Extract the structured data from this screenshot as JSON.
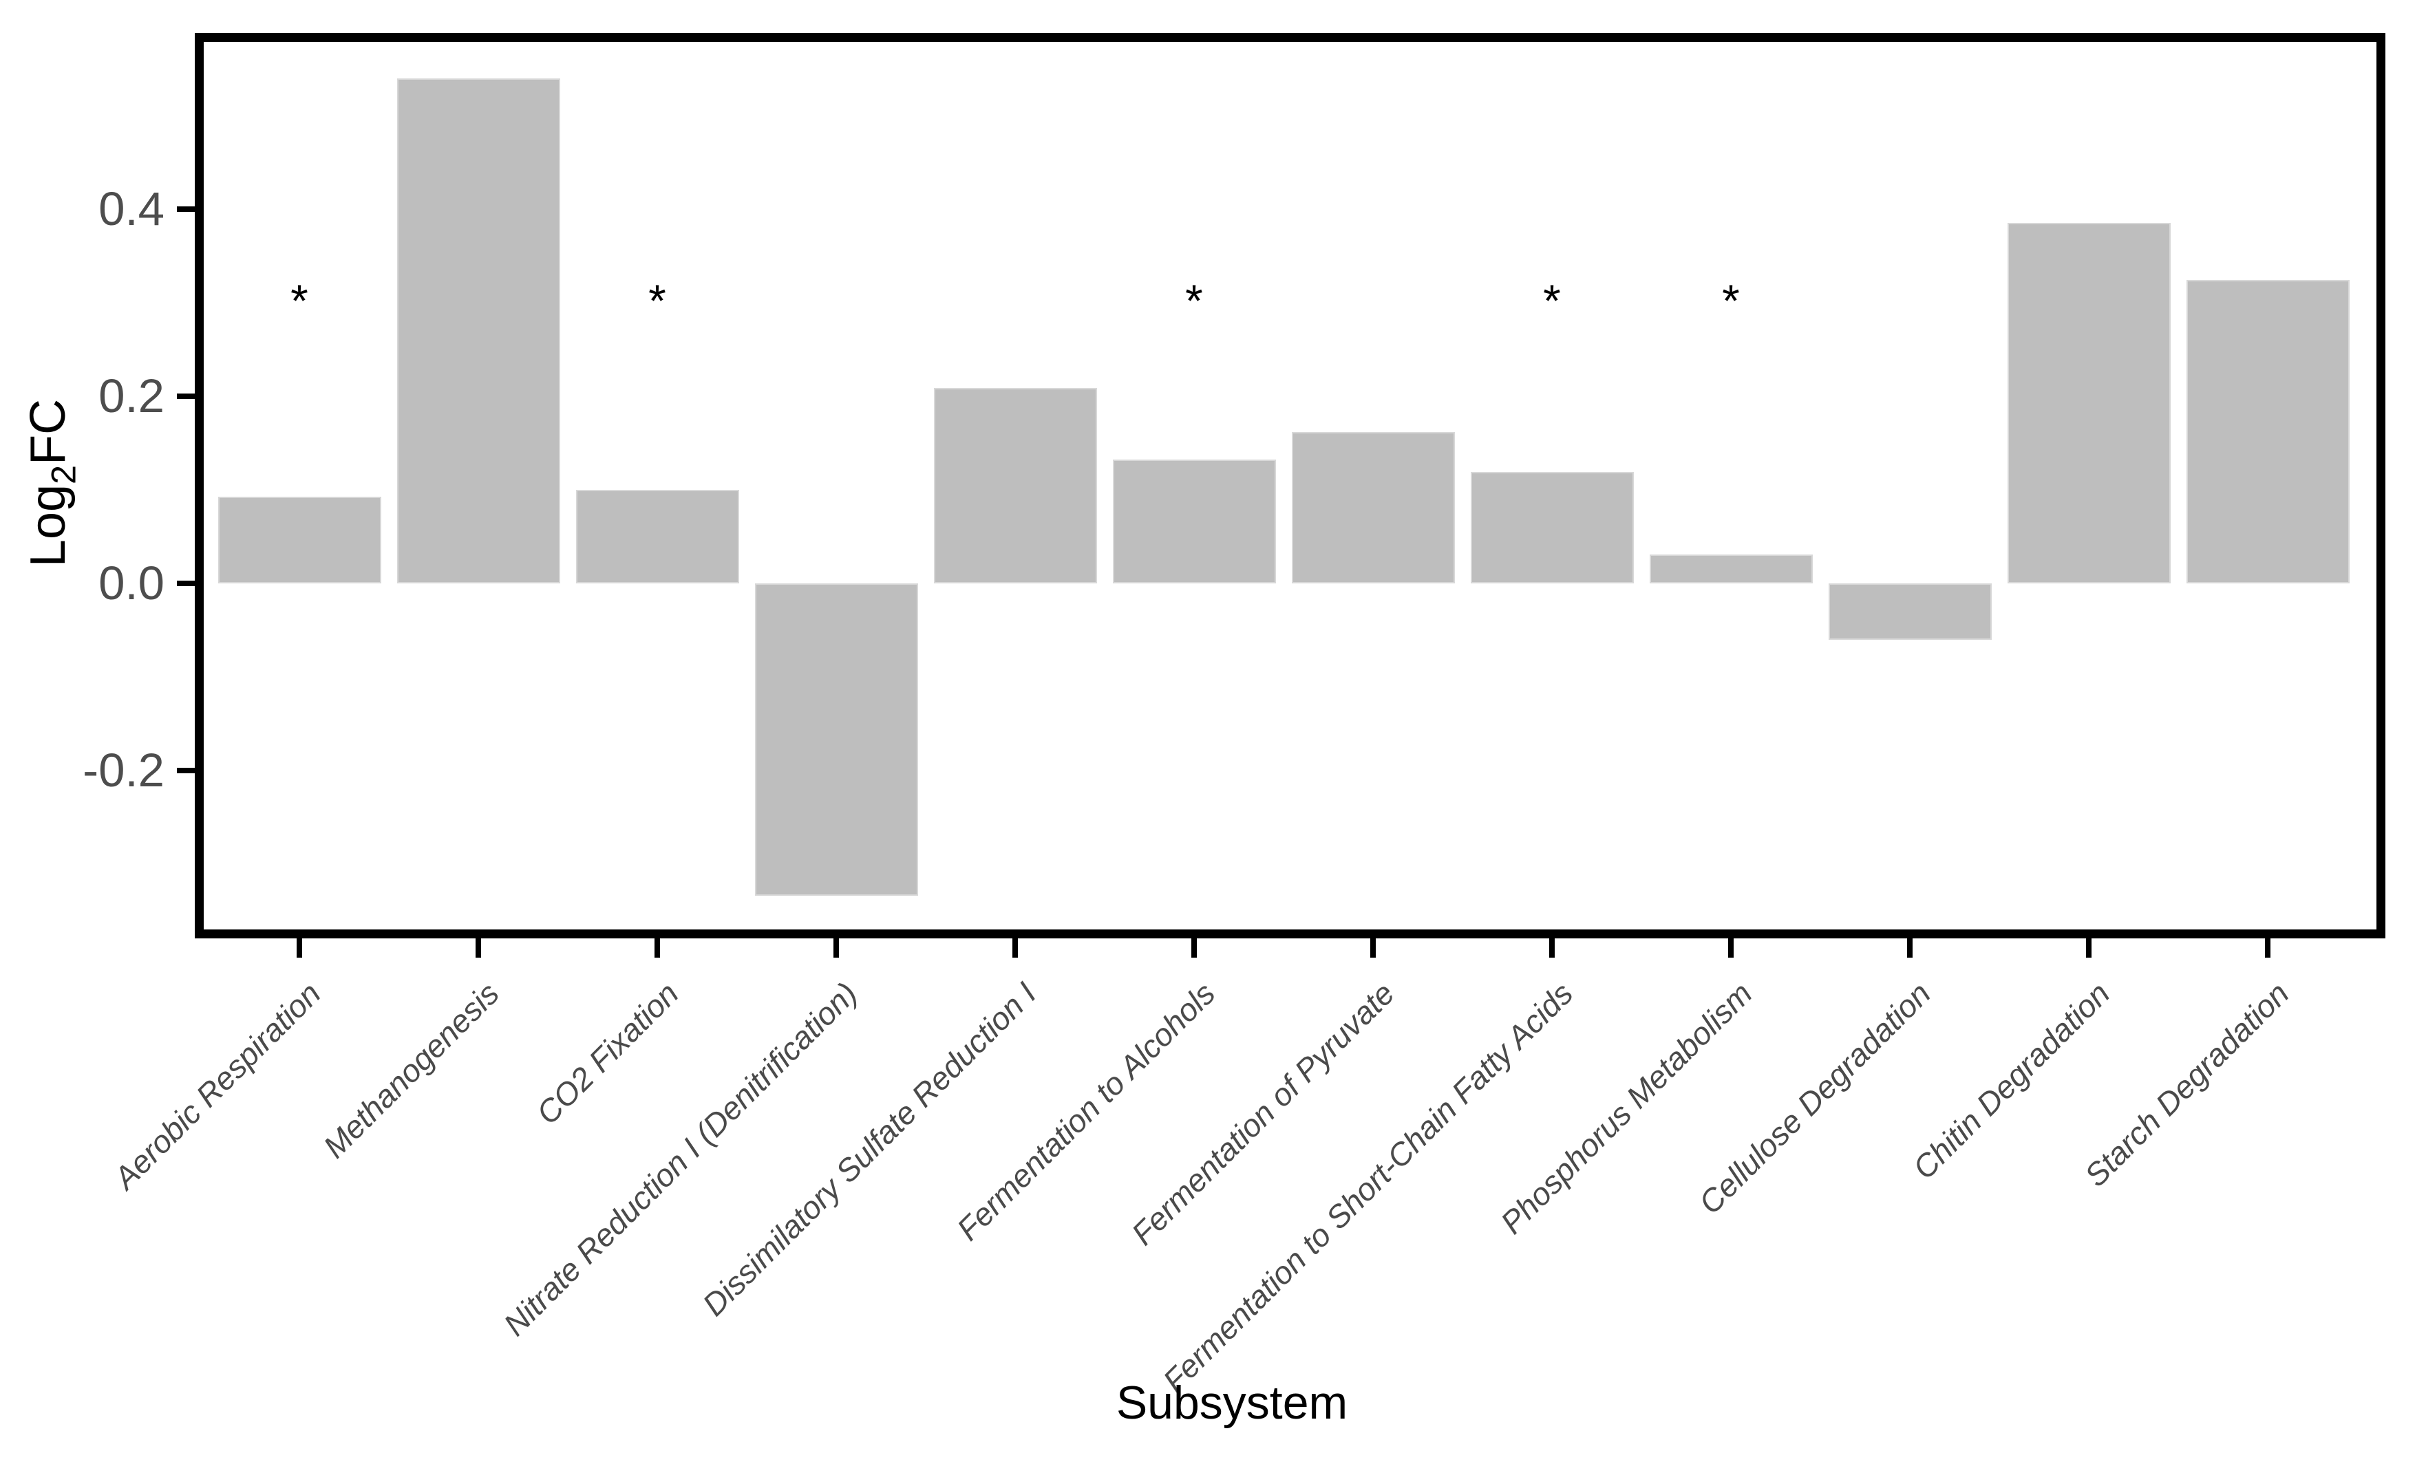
{
  "figure": {
    "background": "#ffffff",
    "bar_fill_color": "#bebebe",
    "bar_edge_color": "#d8d8d8",
    "axis_line_color": "#000000",
    "tick_label_color": "#4d4d4d",
    "axis_title_color": "#000000",
    "significance_marker": "*"
  },
  "chart_data": {
    "type": "bar",
    "title": "",
    "xlabel": "Subsystem",
    "ylabel": "Log2FC",
    "ylabel_parts": {
      "pre": "Log",
      "sub": "2",
      "post": "FC"
    },
    "categories": [
      "Aerobic Respiration",
      "Methanogenesis",
      "CO2 Fixation",
      "Nitrate Reduction I (Denitrification)",
      "Dissimilatory Sulfate Reduction I",
      "Fermentation to Alcohols",
      "Fermentation of Pyruvate",
      "Fermentation to Short-Chain Fatty Acids",
      "Phosphorus Metabolism",
      "Cellulose Degradation",
      "Chitin Degradation",
      "Starch Degradation"
    ],
    "values": [
      0.093,
      0.54,
      0.1,
      -0.334,
      0.209,
      0.132,
      0.162,
      0.119,
      0.031,
      -0.06,
      0.385,
      0.324
    ],
    "significant": [
      true,
      false,
      true,
      false,
      false,
      true,
      false,
      true,
      true,
      false,
      false,
      false
    ],
    "significance_marker_y": 0.31,
    "yticks": [
      "0.4",
      "0.2",
      "0.0",
      "-0.2"
    ],
    "ylim": [
      -0.3775,
      0.5795
    ],
    "grid": false,
    "legend": false,
    "bar_orientation": "vertical"
  }
}
